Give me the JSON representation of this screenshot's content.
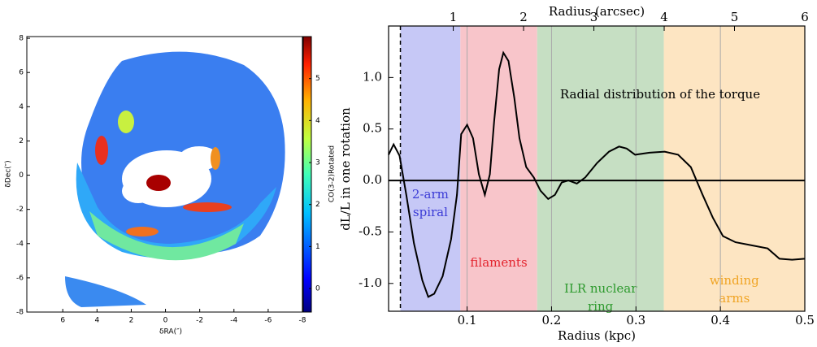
{
  "chart_data": [
    {
      "type": "image",
      "xlabel": "δRA(″)",
      "ylabel": "δDec(″)",
      "colorbar_label": "CO(3-2)Rotated",
      "xlim": [
        8.1,
        -8
      ],
      "ylim": [
        -8,
        8.1
      ],
      "xticks": [
        6,
        4,
        2,
        0,
        -2,
        -4,
        -6,
        -8
      ],
      "yticks": [
        -8,
        -6,
        -4,
        -2,
        0,
        2,
        4,
        6,
        8
      ],
      "clim": [
        -0.56,
        6
      ],
      "cticks": [
        0,
        1,
        2,
        3,
        4,
        5
      ]
    },
    {
      "type": "line",
      "annotation": "Radial distribution of the torque",
      "xlabel": "Radius (kpc)",
      "x2label": "Radius (arcsec)",
      "ylabel": "dL/L in one rotation",
      "xlim": [
        0.007,
        0.5
      ],
      "x2lim": [
        0.08,
        6
      ],
      "ylim": [
        -1.27,
        1.5
      ],
      "xticks": [
        0.1,
        0.2,
        0.3,
        0.4,
        0.5
      ],
      "x2ticks": [
        1,
        2,
        3,
        4,
        5,
        6
      ],
      "yticks": [
        {
          "value": 1,
          "label": "1.0"
        },
        0.5,
        {
          "value": 0,
          "label": "0.0"
        },
        -0.5,
        {
          "value": -1,
          "label": "-1.0"
        }
      ],
      "grid": true,
      "color": "#000000",
      "vline": 0.021,
      "regions": [
        {
          "label": [
            "2-arm",
            "spiral"
          ],
          "x": [
            0.021,
            0.092
          ],
          "color": "#c6c8f6",
          "label_color": "#3b3bd6"
        },
        {
          "label": [
            "filaments"
          ],
          "x": [
            0.092,
            0.183
          ],
          "color": "#f8c5ca",
          "label_color": "#e3242e"
        },
        {
          "label": [
            "ILR nuclear",
            "ring"
          ],
          "x": [
            0.183,
            0.333
          ],
          "color": "#c6dfc3",
          "label_color": "#2e9a2e"
        },
        {
          "label": [
            "winding",
            "arms"
          ],
          "x": [
            0.333,
            0.5
          ],
          "color": "#fde5c2",
          "label_color": "#f0a424"
        }
      ],
      "x": [
        0.007,
        0.013,
        0.02,
        0.028,
        0.037,
        0.047,
        0.054,
        0.061,
        0.071,
        0.081,
        0.088,
        0.093,
        0.1,
        0.107,
        0.114,
        0.121,
        0.127,
        0.132,
        0.138,
        0.143,
        0.149,
        0.156,
        0.162,
        0.17,
        0.179,
        0.187,
        0.196,
        0.204,
        0.212,
        0.22,
        0.23,
        0.24,
        0.254,
        0.268,
        0.28,
        0.289,
        0.299,
        0.316,
        0.334,
        0.35,
        0.365,
        0.379,
        0.391,
        0.403,
        0.418,
        0.437,
        0.456,
        0.47,
        0.485,
        0.5
      ],
      "values": [
        0.25,
        0.35,
        0.24,
        -0.14,
        -0.61,
        -0.97,
        -1.13,
        -1.1,
        -0.93,
        -0.57,
        -0.14,
        0.45,
        0.54,
        0.41,
        0.06,
        -0.14,
        0.06,
        0.57,
        1.08,
        1.24,
        1.16,
        0.8,
        0.41,
        0.13,
        0.03,
        -0.1,
        -0.18,
        -0.14,
        -0.02,
        0,
        -0.03,
        0.03,
        0.17,
        0.28,
        0.33,
        0.31,
        0.25,
        0.27,
        0.28,
        0.25,
        0.13,
        -0.14,
        -0.36,
        -0.54,
        -0.6,
        -0.63,
        -0.66,
        -0.76,
        -0.77,
        -0.76
      ]
    }
  ]
}
